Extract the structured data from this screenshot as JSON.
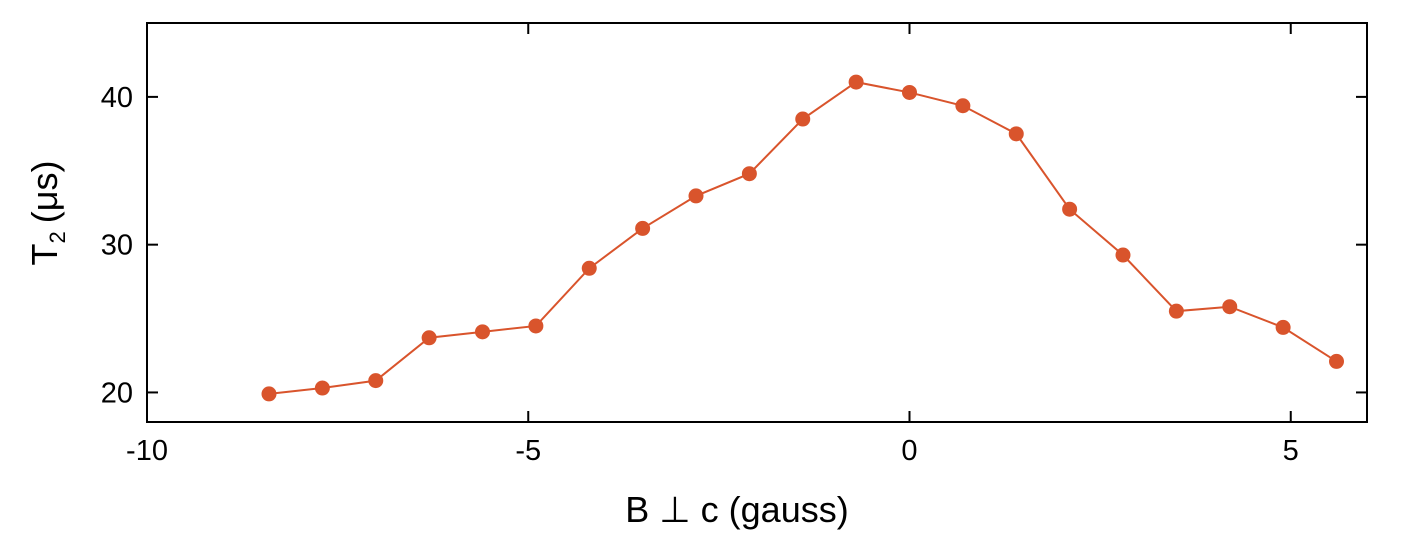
{
  "chart_data": {
    "type": "line",
    "title": "",
    "xlabel": "B ⊥ c (gauss)",
    "ylabel_main": "T",
    "ylabel_sub": "2",
    "ylabel_unit": "(μs)",
    "xlim": [
      -10,
      6
    ],
    "ylim": [
      18,
      45
    ],
    "x_ticks": [
      -10,
      -5,
      0,
      5
    ],
    "y_ticks": [
      20,
      30,
      40
    ],
    "x_tick_labels": [
      "-10",
      "-5",
      "0",
      "5"
    ],
    "y_tick_labels": [
      "20",
      "30",
      "40"
    ],
    "grid": false,
    "color": "#d9542c",
    "series": [
      {
        "x": [
          -8.4,
          -7.7,
          -7.0,
          -6.3,
          -5.6,
          -4.9,
          -4.2,
          -3.5,
          -2.8,
          -2.1,
          -1.4,
          -0.7,
          0.0,
          0.7,
          1.4,
          2.1,
          2.8,
          3.5,
          4.2,
          4.9,
          5.6
        ],
        "y": [
          19.9,
          20.3,
          20.8,
          23.7,
          24.1,
          24.5,
          28.4,
          31.1,
          33.3,
          34.8,
          38.5,
          41.0,
          40.3,
          39.4,
          37.5,
          32.4,
          29.3,
          25.5,
          25.8,
          24.4,
          22.1
        ]
      }
    ]
  }
}
